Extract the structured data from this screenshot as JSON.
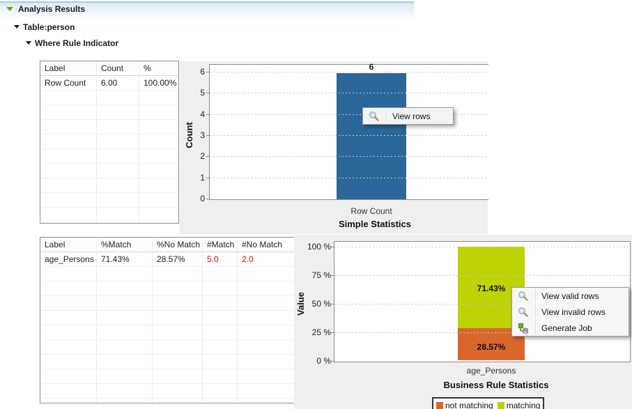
{
  "header": {
    "title": "Analysis Results"
  },
  "tree": {
    "table_label": "Table:person",
    "indicator_label": "Where Rule Indicator"
  },
  "simple_statistics": {
    "table": {
      "columns": [
        "Label",
        "Count",
        "%"
      ],
      "rows": [
        {
          "cells": [
            "Row Count",
            "6.00",
            "100.00%"
          ],
          "cell_colors": [
            null,
            null,
            null
          ]
        }
      ]
    },
    "context_menu": {
      "items": [
        {
          "icon": "magnifier-icon",
          "label": "View rows"
        }
      ]
    }
  },
  "business_rule": {
    "table": {
      "columns": [
        "Label",
        "%Match",
        "%No Match",
        "#Match",
        "#No Match"
      ],
      "rows": [
        {
          "cells": [
            "age_Persons",
            "71.43%",
            "28.57%",
            "5.0",
            "2.0"
          ],
          "cell_colors": [
            null,
            null,
            null,
            "#ff0000",
            "#ff0000"
          ]
        }
      ]
    },
    "context_menu": {
      "items": [
        {
          "icon": "magnifier-icon",
          "label": "View valid rows"
        },
        {
          "icon": "magnifier-icon",
          "label": "View invalid rows"
        },
        {
          "icon": "generate-job-icon",
          "label": "Generate Job"
        }
      ]
    }
  },
  "chart_data": [
    {
      "type": "bar",
      "title": "Simple Statistics",
      "xlabel": "",
      "ylabel": "Count",
      "categories": [
        "Row Count"
      ],
      "values": [
        6
      ],
      "value_labels": [
        "6"
      ],
      "ylim": [
        0,
        6
      ],
      "yticks": [
        0,
        1,
        2,
        3,
        4,
        5,
        6
      ],
      "bar_color": "#2b6798",
      "grid": "dotted-horizontal",
      "legend_position": "none"
    },
    {
      "type": "bar",
      "stacked": true,
      "title": "Business Rule Statistics",
      "xlabel": "",
      "ylabel": "Value",
      "categories": [
        "age_Persons"
      ],
      "series": [
        {
          "name": "not matching",
          "values": [
            28.57
          ],
          "color": "#d9672c",
          "data_label": "28.57%"
        },
        {
          "name": "matching",
          "values": [
            71.43
          ],
          "color": "#bed305",
          "data_label": "71.43%"
        }
      ],
      "ylim": [
        0,
        100
      ],
      "ytick_values": [
        0,
        25,
        50,
        75,
        100
      ],
      "ytick_labels": [
        "0 %",
        "25 %",
        "50 %",
        "75 %",
        "100 %"
      ],
      "grid": "dotted-horizontal",
      "legend_position": "bottom"
    }
  ],
  "colors": {
    "bar_blue": "#2b6798",
    "not_matching_orange": "#d9672c",
    "matching_green": "#bed305",
    "panel_gray": "#efefef",
    "error_red": "#ff0000"
  }
}
